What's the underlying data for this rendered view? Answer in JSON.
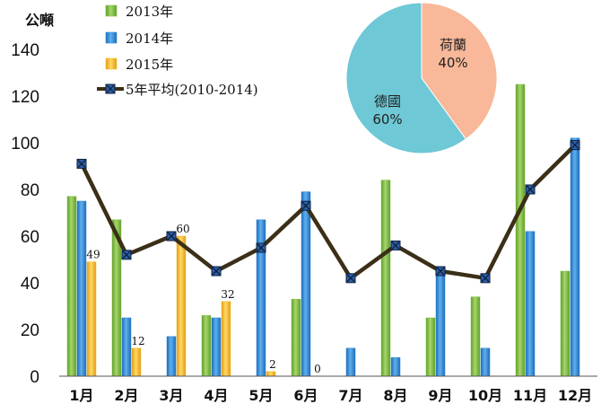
{
  "chart_data": {
    "type": "bar",
    "unit_label": "公噸",
    "categories": [
      "1月",
      "2月",
      "3月",
      "4月",
      "5月",
      "6月",
      "7月",
      "8月",
      "9月",
      "10月",
      "11月",
      "12月"
    ],
    "ylim": [
      0,
      140
    ],
    "yticks": [
      0,
      20,
      40,
      60,
      80,
      100,
      120,
      140
    ],
    "series": [
      {
        "name": "2013年",
        "kind": "bar",
        "color": "#7fbf3f",
        "values": [
          77,
          67,
          0,
          26,
          0,
          33,
          0,
          84,
          25,
          34,
          125,
          45
        ]
      },
      {
        "name": "2014年",
        "kind": "bar",
        "color": "#2f86d6",
        "values": [
          75,
          25,
          17,
          25,
          67,
          79,
          12,
          8,
          44,
          12,
          62,
          102
        ]
      },
      {
        "name": "2015年",
        "kind": "bar",
        "color": "#f7b92e",
        "values": [
          49,
          12,
          60,
          32,
          2,
          0,
          null,
          null,
          null,
          null,
          null,
          null
        ]
      },
      {
        "name": "5年平均(2010-2014)",
        "kind": "line",
        "color": "#3b2f17",
        "values": [
          91,
          52,
          60,
          45,
          55,
          73,
          42,
          56,
          45,
          42,
          80,
          99
        ]
      }
    ],
    "data_labels": [
      {
        "series": "2015年",
        "category": "1月",
        "text": "49"
      },
      {
        "series": "2015年",
        "category": "2月",
        "text": "12"
      },
      {
        "series": "2015年",
        "category": "3月",
        "text": "60"
      },
      {
        "series": "2015年",
        "category": "4月",
        "text": "32"
      },
      {
        "series": "2015年",
        "category": "5月",
        "text": "2"
      },
      {
        "series": "2015年",
        "category": "6月",
        "text": "0"
      }
    ],
    "legend_position": "top-left",
    "grid": false,
    "inset_pie": {
      "type": "pie",
      "slices": [
        {
          "label": "荷蘭",
          "value": 40,
          "text": "40%",
          "color": "#f8b899"
        },
        {
          "label": "德國",
          "value": 60,
          "text": "60%",
          "color": "#6ec8d6"
        }
      ]
    }
  }
}
